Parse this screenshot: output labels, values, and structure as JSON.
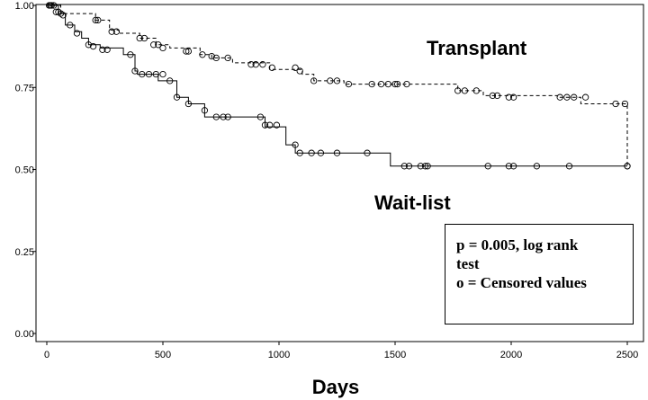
{
  "chart_data": {
    "type": "line",
    "chart_kind": "kaplan-meier",
    "xlabel": "Days",
    "ylabel": "",
    "xlim": [
      0,
      2500
    ],
    "ylim": [
      0,
      1
    ],
    "x_ticks": [
      0,
      500,
      1000,
      1500,
      2000,
      2500
    ],
    "x_tick_labels": [
      "0",
      "500",
      "1000",
      "1500",
      "2000",
      "2500"
    ],
    "y_ticks": [
      0,
      0.25,
      0.5,
      0.75,
      1.0
    ],
    "y_tick_labels": [
      "0.00",
      "0.25",
      "0.50",
      "0.75",
      "1.00"
    ],
    "grid": false,
    "series": [
      {
        "name": "Transplant",
        "line_style": "dashed",
        "steps": [
          [
            0,
            1.0
          ],
          [
            60,
            0.975
          ],
          [
            210,
            0.955
          ],
          [
            270,
            0.925
          ],
          [
            310,
            0.915
          ],
          [
            400,
            0.9
          ],
          [
            470,
            0.88
          ],
          [
            530,
            0.87
          ],
          [
            660,
            0.85
          ],
          [
            710,
            0.84
          ],
          [
            800,
            0.825
          ],
          [
            960,
            0.805
          ],
          [
            1100,
            0.79
          ],
          [
            1150,
            0.77
          ],
          [
            1280,
            0.76
          ],
          [
            1770,
            0.74
          ],
          [
            1880,
            0.725
          ],
          [
            2200,
            0.72
          ],
          [
            2300,
            0.7
          ],
          [
            2500,
            0.51
          ]
        ],
        "censored": [
          [
            15,
            1.0
          ],
          [
            30,
            1.0
          ],
          [
            50,
            0.98
          ],
          [
            210,
            0.955
          ],
          [
            220,
            0.955
          ],
          [
            280,
            0.92
          ],
          [
            300,
            0.92
          ],
          [
            400,
            0.9
          ],
          [
            420,
            0.9
          ],
          [
            460,
            0.88
          ],
          [
            480,
            0.88
          ],
          [
            500,
            0.87
          ],
          [
            600,
            0.86
          ],
          [
            610,
            0.86
          ],
          [
            670,
            0.85
          ],
          [
            710,
            0.845
          ],
          [
            730,
            0.84
          ],
          [
            780,
            0.84
          ],
          [
            880,
            0.82
          ],
          [
            900,
            0.82
          ],
          [
            930,
            0.82
          ],
          [
            970,
            0.81
          ],
          [
            1070,
            0.81
          ],
          [
            1090,
            0.8
          ],
          [
            1150,
            0.77
          ],
          [
            1220,
            0.77
          ],
          [
            1250,
            0.77
          ],
          [
            1300,
            0.76
          ],
          [
            1400,
            0.76
          ],
          [
            1440,
            0.76
          ],
          [
            1470,
            0.76
          ],
          [
            1500,
            0.76
          ],
          [
            1510,
            0.76
          ],
          [
            1550,
            0.76
          ],
          [
            1770,
            0.74
          ],
          [
            1800,
            0.74
          ],
          [
            1850,
            0.74
          ],
          [
            1920,
            0.725
          ],
          [
            1940,
            0.725
          ],
          [
            1990,
            0.72
          ],
          [
            2010,
            0.72
          ],
          [
            2210,
            0.72
          ],
          [
            2240,
            0.72
          ],
          [
            2270,
            0.72
          ],
          [
            2320,
            0.72
          ],
          [
            2450,
            0.7
          ],
          [
            2490,
            0.7
          ],
          [
            2500,
            0.51
          ]
        ]
      },
      {
        "name": "Wait-list",
        "line_style": "solid",
        "steps": [
          [
            0,
            1.0
          ],
          [
            50,
            0.975
          ],
          [
            80,
            0.94
          ],
          [
            120,
            0.92
          ],
          [
            150,
            0.9
          ],
          [
            180,
            0.88
          ],
          [
            230,
            0.87
          ],
          [
            330,
            0.85
          ],
          [
            380,
            0.8
          ],
          [
            390,
            0.79
          ],
          [
            480,
            0.77
          ],
          [
            560,
            0.72
          ],
          [
            610,
            0.7
          ],
          [
            680,
            0.66
          ],
          [
            940,
            0.63
          ],
          [
            1030,
            0.575
          ],
          [
            1070,
            0.55
          ],
          [
            1480,
            0.51
          ],
          [
            2500,
            0.51
          ]
        ],
        "censored": [
          [
            10,
            1.0
          ],
          [
            20,
            1.0
          ],
          [
            40,
            0.98
          ],
          [
            60,
            0.975
          ],
          [
            70,
            0.97
          ],
          [
            100,
            0.94
          ],
          [
            130,
            0.915
          ],
          [
            180,
            0.88
          ],
          [
            200,
            0.875
          ],
          [
            240,
            0.865
          ],
          [
            260,
            0.865
          ],
          [
            360,
            0.85
          ],
          [
            380,
            0.8
          ],
          [
            410,
            0.79
          ],
          [
            440,
            0.79
          ],
          [
            470,
            0.79
          ],
          [
            500,
            0.79
          ],
          [
            530,
            0.77
          ],
          [
            560,
            0.72
          ],
          [
            610,
            0.7
          ],
          [
            680,
            0.68
          ],
          [
            730,
            0.66
          ],
          [
            760,
            0.66
          ],
          [
            780,
            0.66
          ],
          [
            920,
            0.66
          ],
          [
            940,
            0.635
          ],
          [
            960,
            0.635
          ],
          [
            990,
            0.635
          ],
          [
            1070,
            0.575
          ],
          [
            1090,
            0.55
          ],
          [
            1140,
            0.55
          ],
          [
            1180,
            0.55
          ],
          [
            1250,
            0.55
          ],
          [
            1380,
            0.55
          ],
          [
            1540,
            0.51
          ],
          [
            1560,
            0.51
          ],
          [
            1610,
            0.51
          ],
          [
            1630,
            0.51
          ],
          [
            1640,
            0.51
          ],
          [
            1900,
            0.51
          ],
          [
            1990,
            0.51
          ],
          [
            2010,
            0.51
          ],
          [
            2110,
            0.51
          ],
          [
            2250,
            0.51
          ],
          [
            2500,
            0.51
          ]
        ]
      }
    ],
    "legend_lines": [
      "p = 0.005, log rank",
      "test",
      "o = Censored values"
    ]
  }
}
